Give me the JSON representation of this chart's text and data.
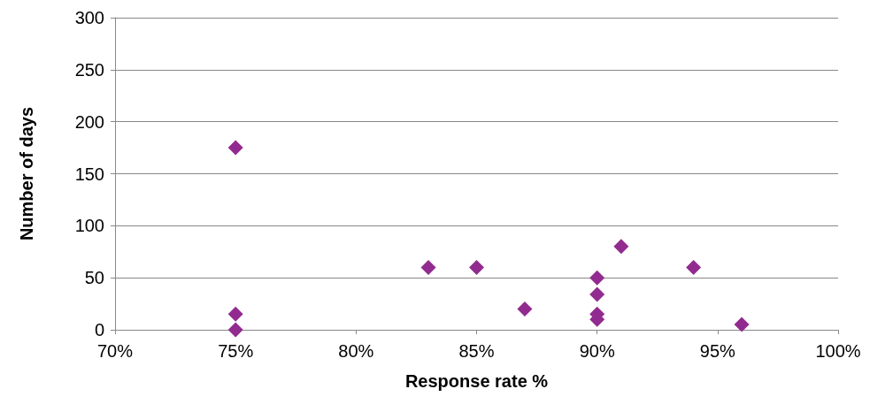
{
  "chart_data": {
    "type": "scatter",
    "xlabel": "Response rate %",
    "ylabel": "Number of days",
    "series": [
      {
        "color": "#922b8f",
        "x": [
          75,
          75,
          75,
          83,
          85,
          87,
          90,
          90,
          90,
          90,
          91,
          94,
          96
        ],
        "values": [
          175,
          15,
          0,
          60,
          60,
          20,
          50,
          34,
          15,
          10,
          80,
          60,
          5
        ]
      }
    ],
    "xlim": [
      70,
      100
    ],
    "xticks": [
      {
        "value": 70,
        "label": "70%"
      },
      {
        "value": 75,
        "label": "75%"
      },
      {
        "value": 80,
        "label": "80%"
      },
      {
        "value": 85,
        "label": "85%"
      },
      {
        "value": 90,
        "label": "90%"
      },
      {
        "value": 95,
        "label": "95%"
      },
      {
        "value": 100,
        "label": "100%"
      }
    ],
    "ylim": [
      0,
      300
    ],
    "yticks": [
      0,
      50,
      100,
      150,
      200,
      250,
      300
    ],
    "grid": "y",
    "marker": "diamond"
  }
}
